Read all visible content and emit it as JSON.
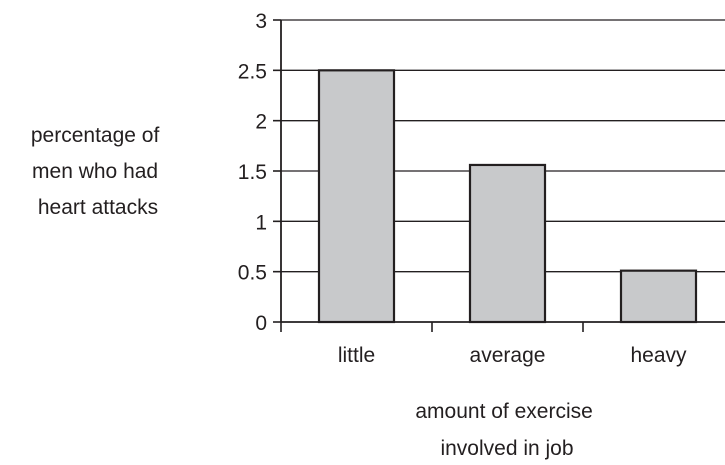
{
  "chart_data": {
    "type": "bar",
    "categories": [
      "little",
      "average",
      "heavy"
    ],
    "values": [
      2.5,
      1.56,
      0.51
    ],
    "xlabel_lines": [
      "amount of exercise",
      "involved in job"
    ],
    "ylabel_lines": [
      "percentage of",
      "men who had",
      "heart attacks"
    ],
    "ylim": [
      0,
      3
    ],
    "yticks": [
      "0",
      "0.5",
      "1",
      "1.5",
      "2",
      "2.5",
      "3"
    ],
    "grid": true,
    "legend": "none",
    "colors": {
      "bar_fill": "#c8c9cb",
      "bar_stroke": "#231f20",
      "axis": "#231f20",
      "grid": "#231f20"
    }
  }
}
